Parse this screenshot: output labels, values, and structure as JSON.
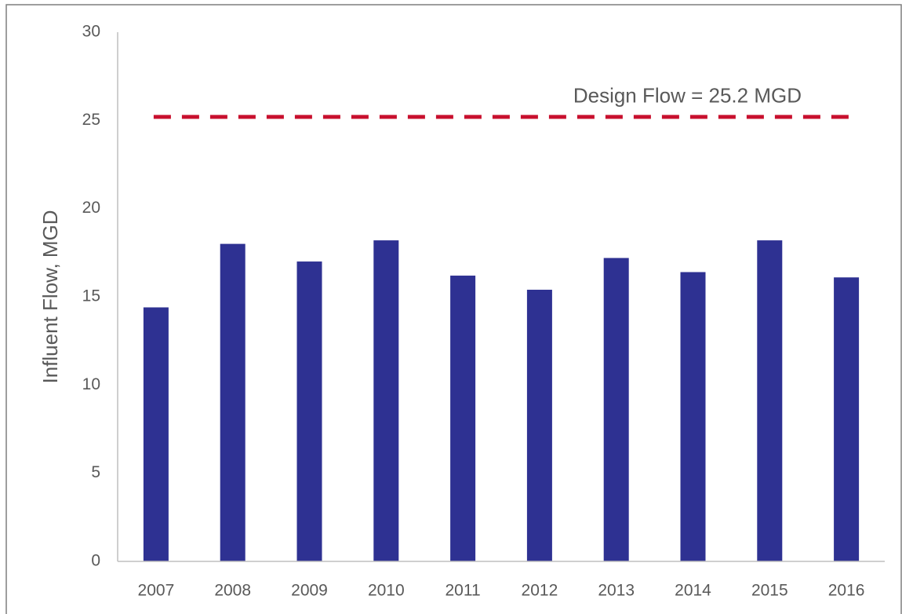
{
  "chart_data": {
    "type": "bar",
    "y_label": "Influent Flow, MGD",
    "categories": [
      "2007",
      "2008",
      "2009",
      "2010",
      "2011",
      "2012",
      "2013",
      "2014",
      "2015",
      "2016"
    ],
    "values": [
      14.4,
      18.0,
      17.0,
      18.2,
      16.2,
      15.4,
      17.2,
      16.4,
      18.2,
      16.1
    ],
    "color": "#2e3192",
    "ylim": [
      0,
      30
    ],
    "yticks": [
      0,
      5,
      10,
      15,
      20,
      25,
      30
    ],
    "grid": false,
    "reference_line": {
      "value": 25.2,
      "label": "Design Flow = 25.2 MGD",
      "color": "#c8102e"
    }
  }
}
